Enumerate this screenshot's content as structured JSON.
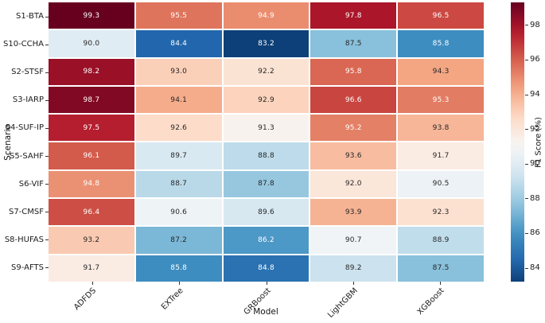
{
  "chart_data": {
    "type": "heatmap",
    "xlabel": "Model",
    "ylabel": "Scenario",
    "colorbar_label": "F1 Score (%)",
    "columns": [
      "ADFDS",
      "EXTree",
      "GRBoost",
      "LightGBM",
      "XGBoost"
    ],
    "rows": [
      "S1-BTA",
      "S10-CCHA",
      "S2-STSF",
      "S3-IARP",
      "S4-SUF-IP",
      "S5-SAHF",
      "S6-VIF",
      "S7-CMSF",
      "S8-HUFAS",
      "S9-AFTS"
    ],
    "values": [
      [
        99.3,
        95.5,
        94.9,
        97.8,
        96.5
      ],
      [
        90.0,
        84.4,
        83.2,
        87.5,
        85.8
      ],
      [
        98.2,
        93.0,
        92.2,
        95.8,
        94.3
      ],
      [
        98.7,
        94.1,
        92.9,
        96.6,
        95.3
      ],
      [
        97.5,
        92.6,
        91.3,
        95.2,
        93.8
      ],
      [
        96.1,
        89.7,
        88.8,
        93.6,
        91.7
      ],
      [
        94.8,
        88.7,
        87.8,
        92.0,
        90.5
      ],
      [
        96.4,
        90.6,
        89.6,
        93.9,
        92.3
      ],
      [
        93.2,
        87.2,
        86.2,
        90.7,
        88.9
      ],
      [
        91.7,
        85.8,
        84.8,
        89.2,
        87.5
      ]
    ],
    "value_format_decimals": 1,
    "colormap": {
      "name": "RdBu_r",
      "anchors": [
        "#053061",
        "#2166ac",
        "#4393c3",
        "#92c5de",
        "#d1e5f0",
        "#f7f7f7",
        "#fddbc7",
        "#f4a582",
        "#d6604d",
        "#b2182b",
        "#67001f"
      ]
    },
    "norm": {
      "vmin": 82.7,
      "vmax": 99.3,
      "center": 91.0
    },
    "colorbar_range": [
      83.2,
      99.3
    ],
    "colorbar_ticks": [
      98,
      96,
      94,
      92,
      90,
      88,
      86,
      84
    ],
    "annotation_colors": {
      "light_text": "#ffffff",
      "dark_text": "#262626"
    },
    "grid_line_color": "#ffffff",
    "legend_position": "right",
    "background": "#ffffff"
  }
}
